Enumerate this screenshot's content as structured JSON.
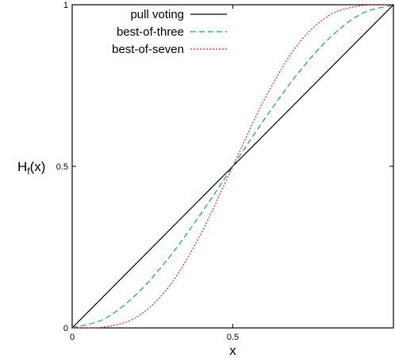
{
  "chart_data": {
    "type": "line",
    "xlabel": "x",
    "ylabel": "H",
    "ylabel_sub": "f",
    "ylabel_suffix": "(x)",
    "xlim": [
      0,
      1
    ],
    "ylim": [
      0,
      1
    ],
    "x_ticks": [
      "0",
      "0.5"
    ],
    "y_ticks": [
      "0",
      "0.5",
      "1"
    ],
    "grid": false,
    "legend_position": "top-left",
    "series": [
      {
        "name": "pull voting",
        "color": "#000000",
        "style": "solid",
        "x": [
          0,
          0.1,
          0.2,
          0.3,
          0.4,
          0.5,
          0.6,
          0.7,
          0.8,
          0.9,
          1.0
        ],
        "y": [
          0,
          0.1,
          0.2,
          0.3,
          0.4,
          0.5,
          0.6,
          0.7,
          0.8,
          0.9,
          1.0
        ]
      },
      {
        "name": "best-of-three",
        "color": "#1a9a7a",
        "style": "dashed",
        "x": [
          0,
          0.1,
          0.2,
          0.3,
          0.4,
          0.5,
          0.6,
          0.7,
          0.8,
          0.9,
          1.0
        ],
        "y": [
          0,
          0.028,
          0.104,
          0.216,
          0.352,
          0.5,
          0.648,
          0.784,
          0.896,
          0.972,
          1.0
        ]
      },
      {
        "name": "best-of-seven",
        "color": "#dd2222",
        "style": "dotted",
        "x": [
          0,
          0.1,
          0.2,
          0.3,
          0.4,
          0.5,
          0.6,
          0.7,
          0.8,
          0.9,
          1.0
        ],
        "y": [
          0,
          0.003,
          0.033,
          0.126,
          0.29,
          0.5,
          0.71,
          0.874,
          0.967,
          0.997,
          1.0
        ]
      }
    ]
  }
}
